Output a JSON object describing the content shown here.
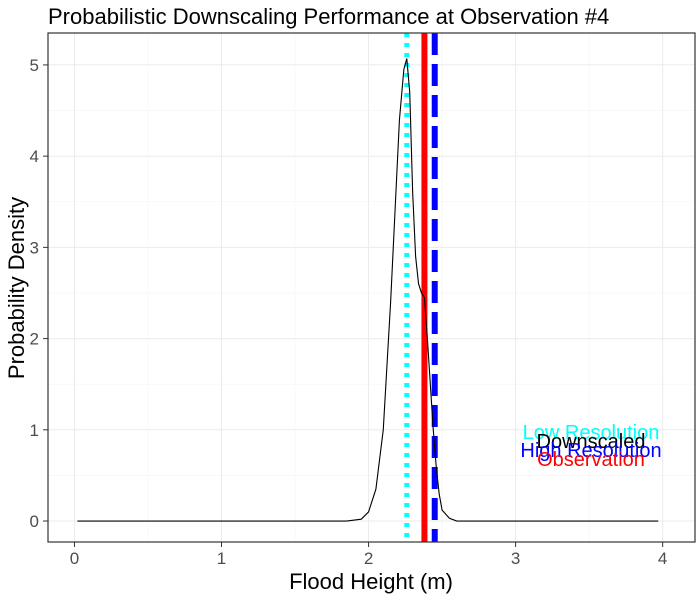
{
  "chart_data": {
    "type": "line",
    "title": "Probabilistic Downscaling Performance at Observation #4",
    "xlabel": "Flood Height (m)",
    "ylabel": "Probability Density",
    "xlim": [
      -0.18,
      4.22
    ],
    "ylim": [
      -0.23,
      5.35
    ],
    "x_ticks": [
      0,
      1,
      2,
      3,
      4
    ],
    "y_ticks": [
      0,
      1,
      2,
      3,
      4,
      5
    ],
    "grid": true,
    "density": {
      "name": "Downscaled",
      "color": "#000000",
      "x": [
        0.02,
        1.0,
        1.85,
        1.95,
        2.0,
        2.05,
        2.1,
        2.15,
        2.18,
        2.21,
        2.24,
        2.26,
        2.28,
        2.3,
        2.32,
        2.34,
        2.36,
        2.38,
        2.4,
        2.42,
        2.44,
        2.46,
        2.48,
        2.5,
        2.55,
        2.6,
        3.0,
        3.97
      ],
      "y": [
        0,
        0,
        0.0,
        0.02,
        0.1,
        0.35,
        1.0,
        2.4,
        3.4,
        4.4,
        4.95,
        5.07,
        4.7,
        3.6,
        2.9,
        2.6,
        2.5,
        2.45,
        2.0,
        1.5,
        1.0,
        0.6,
        0.3,
        0.12,
        0.03,
        0.0,
        0,
        0
      ]
    },
    "vlines": [
      {
        "name": "Low Resolution",
        "x": 2.26,
        "color": "#00ffff",
        "style": "dotted"
      },
      {
        "name": "Observation",
        "x": 2.38,
        "color": "#ff0000",
        "style": "solid"
      },
      {
        "name": "High Resolution",
        "x": 2.45,
        "color": "#0000ff",
        "style": "dashed"
      }
    ],
    "legend": {
      "placement": "right",
      "labels": [
        {
          "text": "Low Resolution",
          "color": "#00ffff"
        },
        {
          "text": "Downscaled",
          "color": "#000000"
        },
        {
          "text": "High Resolution",
          "color": "#0000ff"
        },
        {
          "text": "Observation",
          "color": "#ff0000"
        }
      ]
    }
  }
}
